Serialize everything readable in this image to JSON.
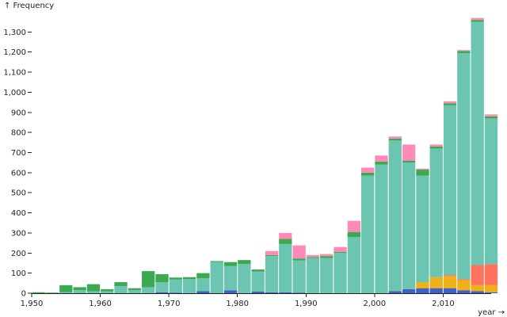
{
  "chart_data": {
    "type": "bar",
    "stacked": true,
    "ylabel": "↑ Frequency",
    "xlabel": "year →",
    "xlim": [
      1950,
      2017
    ],
    "ylim": [
      0,
      1400
    ],
    "bin_width": 2,
    "x_ticks": [
      1950,
      1960,
      1970,
      1980,
      1990,
      2000,
      2010
    ],
    "x_tick_labels": [
      "1,950",
      "1,960",
      "1,970",
      "1,980",
      "1,990",
      "2,000",
      "2,010"
    ],
    "y_ticks": [
      0,
      100,
      200,
      300,
      400,
      500,
      600,
      700,
      800,
      900,
      1000,
      1100,
      1200,
      1300
    ],
    "y_tick_labels": [
      "0",
      "100",
      "200",
      "300",
      "400",
      "500",
      "600",
      "700",
      "800",
      "900",
      "1,000",
      "1,100",
      "1,200",
      "1,300"
    ],
    "bin_starts": [
      1950,
      1952,
      1954,
      1956,
      1958,
      1960,
      1962,
      1964,
      1966,
      1968,
      1970,
      1972,
      1974,
      1976,
      1978,
      1980,
      1982,
      1984,
      1986,
      1988,
      1990,
      1992,
      1994,
      1996,
      1998,
      2000,
      2002,
      2004,
      2006,
      2008,
      2010,
      2012,
      2014,
      2016
    ],
    "series": [
      {
        "color": "#4060c8",
        "values": [
          0,
          0,
          0,
          0,
          0,
          0,
          0,
          0,
          0,
          5,
          3,
          0,
          10,
          0,
          15,
          0,
          8,
          5,
          5,
          3,
          0,
          0,
          0,
          0,
          0,
          0,
          10,
          20,
          25,
          25,
          25,
          15,
          10,
          5
        ]
      },
      {
        "color": "#efb118",
        "values": [
          0,
          0,
          0,
          0,
          0,
          0,
          0,
          0,
          0,
          0,
          0,
          0,
          0,
          0,
          0,
          0,
          0,
          0,
          0,
          0,
          0,
          0,
          0,
          0,
          0,
          0,
          0,
          0,
          30,
          55,
          60,
          50,
          30,
          35
        ]
      },
      {
        "color": "#ff725c",
        "values": [
          0,
          0,
          0,
          0,
          0,
          0,
          0,
          0,
          0,
          0,
          0,
          0,
          0,
          0,
          0,
          0,
          0,
          0,
          0,
          0,
          0,
          0,
          0,
          0,
          0,
          0,
          0,
          0,
          0,
          0,
          5,
          5,
          100,
          105
        ]
      },
      {
        "color": "#6cc5b0",
        "values": [
          0,
          0,
          5,
          15,
          10,
          10,
          35,
          15,
          30,
          50,
          65,
          70,
          65,
          155,
          120,
          145,
          100,
          180,
          240,
          160,
          175,
          175,
          200,
          280,
          585,
          640,
          750,
          630,
          530,
          640,
          845,
          1125,
          1210,
          725
        ]
      },
      {
        "color": "#3ca951",
        "values": [
          5,
          3,
          35,
          15,
          35,
          10,
          20,
          10,
          80,
          40,
          10,
          10,
          25,
          5,
          20,
          20,
          10,
          5,
          25,
          10,
          5,
          10,
          5,
          25,
          15,
          15,
          10,
          10,
          30,
          10,
          10,
          10,
          10,
          10
        ]
      },
      {
        "color": "#ff8ab7",
        "values": [
          0,
          0,
          0,
          0,
          0,
          0,
          0,
          0,
          0,
          0,
          0,
          0,
          0,
          0,
          0,
          0,
          0,
          20,
          30,
          65,
          10,
          10,
          25,
          55,
          25,
          30,
          10,
          80,
          5,
          10,
          10,
          5,
          10,
          10
        ]
      }
    ]
  }
}
